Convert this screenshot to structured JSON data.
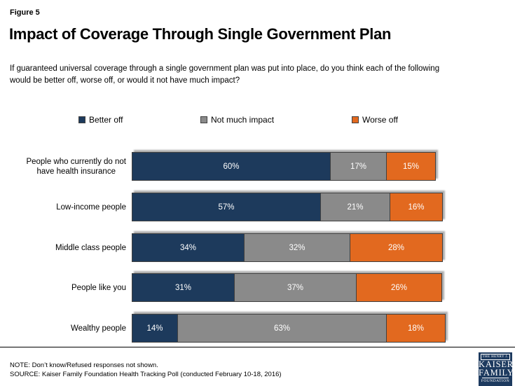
{
  "figure_label": "Figure 5",
  "title": "Impact of Coverage Through Single Government Plan",
  "subtitle": "If guaranteed universal coverage through a single government plan was put into place, do you think each of the following\nwould be better off, worse off, or would it not have much impact?",
  "chart_data": {
    "type": "bar",
    "orientation": "horizontal",
    "stacked": true,
    "legend_position": "top",
    "grid": false,
    "xlim": [
      0,
      100
    ],
    "value_suffix": "%",
    "categories": [
      "People who currently do not\nhave health insurance",
      "Low-income people",
      "Middle class people",
      "People like you",
      "Wealthy people"
    ],
    "series": [
      {
        "name": "Better off",
        "color": "#1d3a5c",
        "values": [
          60,
          57,
          34,
          31,
          14
        ]
      },
      {
        "name": "Not much impact",
        "color": "#8a8a8a",
        "values": [
          17,
          21,
          32,
          37,
          63
        ]
      },
      {
        "name": "Worse off",
        "color": "#e2691f",
        "values": [
          15,
          16,
          28,
          26,
          18
        ]
      }
    ],
    "data_label_color": "#ffffff"
  },
  "footer": {
    "note": "NOTE: Don’t know/Refused responses not shown.",
    "source": "SOURCE: Kaiser Family Foundation Health Tracking Poll (conducted February 10-18, 2016)"
  },
  "logo": {
    "line1": "THE HENRY J.",
    "line2": "KAISER",
    "line3": "FAMILY",
    "line4": "FOUNDATION",
    "background": "#1d3a5f"
  }
}
